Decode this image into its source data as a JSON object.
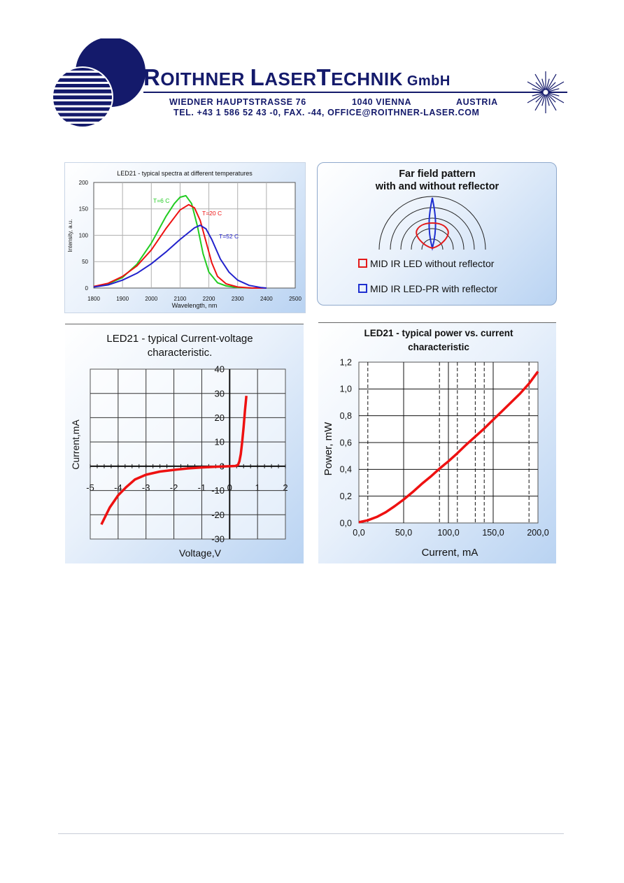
{
  "header": {
    "company_name_parts": [
      "R",
      "OITHNER ",
      "L",
      "ASER",
      "T",
      "ECHNIK"
    ],
    "company_suffix": "GmbH",
    "street": "WIEDNER HAUPTSTRASSE 76",
    "city": "1040 VIENNA",
    "country": "AUSTRIA",
    "contact": "TEL. +43 1 586 52 43 -0, FAX. -44, OFFICE@ROITHNER-LASER.COM",
    "brand_color": "#141a6b"
  },
  "farfield": {
    "title_line1": "Far field pattern",
    "title_line2": "with and without reflector",
    "legend": [
      {
        "label": "MID IR LED without reflector",
        "color": "#e31a1a"
      },
      {
        "label": "MID IR LED-PR with reflector",
        "color": "#1e2fd0"
      }
    ]
  },
  "chart_data": [
    {
      "type": "line",
      "title": "LED21 - typical spectra at different temperatures",
      "xlabel": "Wavelength, nm",
      "ylabel": "Intensity, a.u.",
      "xlim": [
        1800,
        2500
      ],
      "ylim": [
        0,
        200
      ],
      "xticks": [
        "1800",
        "1900",
        "2000",
        "2100",
        "2200",
        "2300",
        "2400",
        "2500"
      ],
      "yticks": [
        "0",
        "50",
        "100",
        "150",
        "200"
      ],
      "grid": true,
      "series": [
        {
          "name": "T=6 C",
          "color": "#22cc22",
          "x": [
            1800,
            1850,
            1900,
            1950,
            2000,
            2050,
            2080,
            2100,
            2120,
            2140,
            2160,
            2180,
            2200,
            2230,
            2260,
            2300,
            2350,
            2400
          ],
          "y": [
            2,
            8,
            20,
            45,
            85,
            135,
            160,
            172,
            175,
            160,
            118,
            65,
            30,
            10,
            4,
            1,
            0,
            0
          ]
        },
        {
          "name": "T=20 C",
          "color": "#ee1111",
          "x": [
            1800,
            1850,
            1900,
            1950,
            2000,
            2050,
            2100,
            2130,
            2150,
            2170,
            2190,
            2210,
            2230,
            2260,
            2300,
            2350,
            2400
          ],
          "y": [
            3,
            9,
            22,
            42,
            72,
            112,
            148,
            158,
            152,
            128,
            88,
            48,
            22,
            8,
            2,
            0,
            0
          ]
        },
        {
          "name": "T=52 C",
          "color": "#2222cc",
          "x": [
            1800,
            1850,
            1900,
            1950,
            2000,
            2050,
            2100,
            2150,
            2170,
            2190,
            2210,
            2240,
            2270,
            2300,
            2340,
            2380,
            2400
          ],
          "y": [
            2,
            6,
            15,
            28,
            46,
            68,
            92,
            114,
            119,
            112,
            92,
            55,
            30,
            15,
            5,
            1,
            0
          ]
        }
      ]
    },
    {
      "type": "line",
      "title": "LED21 - typical Current-voltage characteristic.",
      "xlabel": "Voltage,V",
      "ylabel": "Current,mA",
      "xlim": [
        -5,
        2
      ],
      "ylim": [
        -30,
        40
      ],
      "xticks": [
        "-5",
        "-4",
        "-3",
        "-2",
        "-1",
        "0",
        "1",
        "2"
      ],
      "yticks": [
        "-30",
        "-20",
        "-10",
        "0",
        "10",
        "20",
        "30",
        "40"
      ],
      "grid": true,
      "series": [
        {
          "color": "#ee1111",
          "x": [
            -4.6,
            -4.3,
            -4.0,
            -3.7,
            -3.4,
            -3.0,
            -2.5,
            -2.0,
            -1.5,
            -1.0,
            -0.5,
            0,
            0.2,
            0.3,
            0.35,
            0.4,
            0.45,
            0.5,
            0.55,
            0.6
          ],
          "y": [
            -24,
            -17,
            -12,
            -8.5,
            -5.5,
            -3.5,
            -2.2,
            -1.5,
            -0.9,
            -0.5,
            -0.2,
            0,
            0.1,
            0.5,
            2,
            5,
            10,
            16,
            23,
            29
          ]
        }
      ]
    },
    {
      "type": "line",
      "title": "LED21 - typical power vs. current characteristic",
      "xlabel": "Current, mA",
      "ylabel": "Power, mW",
      "xlim": [
        0,
        200
      ],
      "ylim": [
        0,
        1.2
      ],
      "xticks": [
        "0,0",
        "50,0",
        "100,0",
        "150,0",
        "200,0"
      ],
      "yticks": [
        "0,0",
        "0,2",
        "0,4",
        "0,6",
        "0,8",
        "1,0",
        "1,2"
      ],
      "grid": true,
      "dashed_x": [
        10,
        90,
        110,
        130,
        140,
        190
      ],
      "series": [
        {
          "color": "#ee1111",
          "x": [
            0,
            10,
            20,
            30,
            40,
            50,
            60,
            70,
            80,
            90,
            100,
            110,
            120,
            130,
            140,
            150,
            160,
            170,
            180,
            190,
            200
          ],
          "y": [
            0.005,
            0.02,
            0.045,
            0.08,
            0.125,
            0.175,
            0.23,
            0.29,
            0.345,
            0.405,
            0.46,
            0.52,
            0.585,
            0.645,
            0.705,
            0.77,
            0.835,
            0.9,
            0.965,
            1.04,
            1.13
          ]
        }
      ]
    }
  ]
}
